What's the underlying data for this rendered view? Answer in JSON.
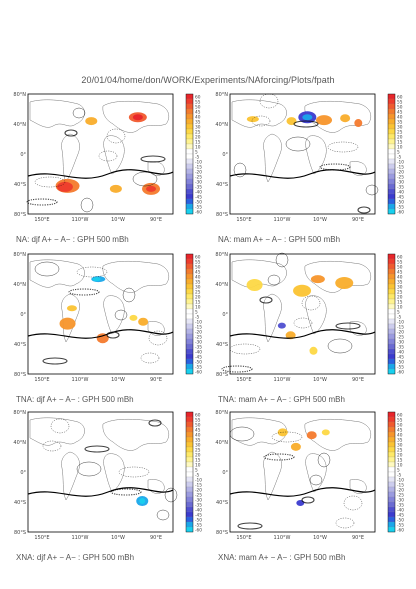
{
  "header": {
    "path": "20/01/04/home/don/WORK/Experiments/NAforcing/Plots/fpath"
  },
  "colorbar": {
    "labels": [
      "60",
      "55",
      "50",
      "45",
      "40",
      "35",
      "30",
      "25",
      "20",
      "15",
      "10",
      "5",
      "-5",
      "-10",
      "-15",
      "-20",
      "-25",
      "-30",
      "-35",
      "-40",
      "-45",
      "-50",
      "-55",
      "-60"
    ],
    "colors": [
      "#e8242a",
      "#ee3b2c",
      "#f15a2e",
      "#f47a2d",
      "#f7952b",
      "#f9ad2b",
      "#fbc332",
      "#fdd845",
      "#fee967",
      "#fff38f",
      "#fffac0",
      "#ffffff",
      "#ffffff",
      "#e6e6f6",
      "#cdcdee",
      "#b3b3e6",
      "#9b9be0",
      "#8383da",
      "#6b6bd3",
      "#4f4fd0",
      "#3b3bcf",
      "#2a60e0",
      "#1aa6ea",
      "#18d0ee"
    ]
  },
  "panels": [
    {
      "caption": "NA: djf A+ − A− : GPH 500 mBh",
      "lat_labels": [
        "80°N",
        "40°N",
        "0°",
        "40°S",
        "80°S"
      ],
      "lon_labels": [
        "150°E",
        "110°W",
        "10°W",
        "90°E"
      ]
    },
    {
      "caption": "NA: mam A+ − A− : GPH 500 mBh",
      "lat_labels": [
        "80°N",
        "40°N",
        "0°",
        "40°S",
        "80°S"
      ],
      "lon_labels": [
        "150°E",
        "110°W",
        "10°W",
        "90°E"
      ]
    },
    {
      "caption": "TNA: djf A+ − A− : GPH 500 mBh",
      "lat_labels": [
        "80°N",
        "40°N",
        "0°",
        "40°S",
        "80°S"
      ],
      "lon_labels": [
        "150°E",
        "110°W",
        "10°W",
        "90°E"
      ]
    },
    {
      "caption": "TNA: mam A+ − A− : GPH 500 mBh",
      "lat_labels": [
        "80°N",
        "40°N",
        "0°",
        "40°S",
        "80°S"
      ],
      "lon_labels": [
        "150°E",
        "110°W",
        "10°W",
        "90°E"
      ]
    },
    {
      "caption": "XNA: djf A+ − A− : GPH 500 mBh",
      "lat_labels": [
        "80°N",
        "40°N",
        "0°",
        "40°S",
        "80°S"
      ],
      "lon_labels": [
        "150°E",
        "110°W",
        "10°W",
        "90°E"
      ]
    },
    {
      "caption": "XNA: mam A+ − A− : GPH 500 mBh",
      "lat_labels": [
        "80°N",
        "40°N",
        "0°",
        "40°S",
        "80°S"
      ],
      "lon_labels": [
        "150°E",
        "110°W",
        "10°W",
        "90°E"
      ]
    }
  ],
  "chart_data": [
    {
      "type": "heatmap",
      "caption": "NA: djf A+ − A− : GPH 500 mBh",
      "x_ticks": [
        "150°E",
        "110°W",
        "10°W",
        "90°E"
      ],
      "y_ticks": [
        "80°N",
        "40°N",
        "0°",
        "40°S",
        "80°S"
      ],
      "colorbar_range": [
        -60,
        60
      ],
      "colorbar_levels": [
        60,
        55,
        50,
        45,
        40,
        35,
        30,
        25,
        20,
        15,
        10,
        5,
        -5,
        -10,
        -15,
        -20,
        -25,
        -30,
        -35,
        -40,
        -45,
        -50,
        -55,
        -60
      ]
    },
    {
      "type": "heatmap",
      "caption": "NA: mam A+ − A− : GPH 500 mBh",
      "x_ticks": [
        "150°E",
        "110°W",
        "10°W",
        "90°E"
      ],
      "y_ticks": [
        "80°N",
        "40°N",
        "0°",
        "40°S",
        "80°S"
      ],
      "colorbar_range": [
        -60,
        60
      ],
      "colorbar_levels": [
        60,
        55,
        50,
        45,
        40,
        35,
        30,
        25,
        20,
        15,
        10,
        5,
        -5,
        -10,
        -15,
        -20,
        -25,
        -30,
        -35,
        -40,
        -45,
        -50,
        -55,
        -60
      ]
    },
    {
      "type": "heatmap",
      "caption": "TNA: djf A+ − A− : GPH 500 mBh",
      "x_ticks": [
        "150°E",
        "110°W",
        "10°W",
        "90°E"
      ],
      "y_ticks": [
        "80°N",
        "40°N",
        "0°",
        "40°S",
        "80°S"
      ],
      "colorbar_range": [
        -60,
        60
      ],
      "colorbar_levels": [
        60,
        55,
        50,
        45,
        40,
        35,
        30,
        25,
        20,
        15,
        10,
        5,
        -5,
        -10,
        -15,
        -20,
        -25,
        -30,
        -35,
        -40,
        -45,
        -50,
        -55,
        -60
      ]
    },
    {
      "type": "heatmap",
      "caption": "TNA: mam A+ − A− : GPH 500 mBh",
      "x_ticks": [
        "150°E",
        "110°W",
        "10°W",
        "90°E"
      ],
      "y_ticks": [
        "80°N",
        "40°N",
        "0°",
        "40°S",
        "80°S"
      ],
      "colorbar_range": [
        -60,
        60
      ],
      "colorbar_levels": [
        60,
        55,
        50,
        45,
        40,
        35,
        30,
        25,
        20,
        15,
        10,
        5,
        -5,
        -10,
        -15,
        -20,
        -25,
        -30,
        -35,
        -40,
        -45,
        -50,
        -55,
        -60
      ]
    },
    {
      "type": "heatmap",
      "caption": "XNA: djf A+ − A− : GPH 500 mBh",
      "x_ticks": [
        "150°E",
        "110°W",
        "10°W",
        "90°E"
      ],
      "y_ticks": [
        "80°N",
        "40°N",
        "0°",
        "40°S",
        "80°S"
      ],
      "colorbar_range": [
        -60,
        60
      ],
      "colorbar_levels": [
        60,
        55,
        50,
        45,
        40,
        35,
        30,
        25,
        20,
        15,
        10,
        5,
        -5,
        -10,
        -15,
        -20,
        -25,
        -30,
        -35,
        -40,
        -45,
        -50,
        -55,
        -60
      ]
    },
    {
      "type": "heatmap",
      "caption": "XNA: mam A+ − A− : GPH 500 mBh",
      "x_ticks": [
        "150°E",
        "110°W",
        "10°W",
        "90°E"
      ],
      "y_ticks": [
        "80°N",
        "40°N",
        "0°",
        "40°S",
        "80°S"
      ],
      "colorbar_range": [
        -60,
        60
      ],
      "colorbar_levels": [
        60,
        55,
        50,
        45,
        40,
        35,
        30,
        25,
        20,
        15,
        10,
        5,
        -5,
        -10,
        -15,
        -20,
        -25,
        -30,
        -35,
        -40,
        -45,
        -50,
        -55,
        -60
      ]
    }
  ]
}
